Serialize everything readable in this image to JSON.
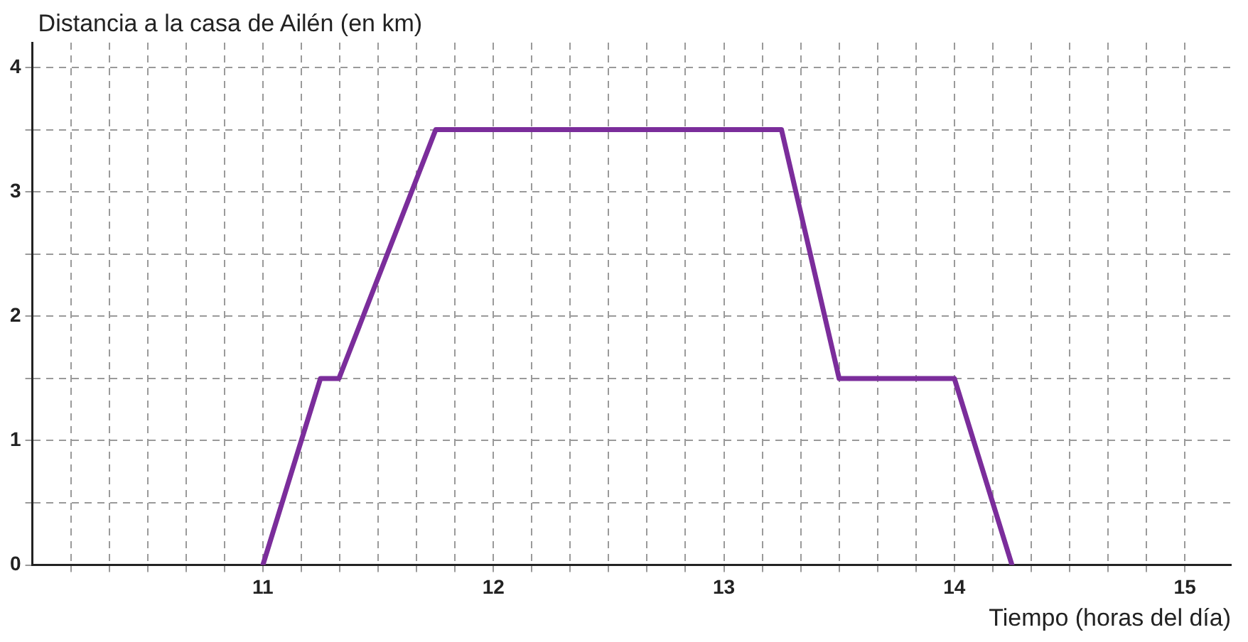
{
  "chart_data": {
    "type": "line",
    "xlabel": "Tiempo (horas del día)",
    "ylabel": "Distancia a la casa de Ailén (en km)",
    "x": [
      11,
      11.25,
      11.33,
      11.75,
      13.25,
      13.5,
      14,
      14.25
    ],
    "series": [
      {
        "color": "#7b2d9b",
        "values": [
          0,
          1.5,
          1.5,
          3.5,
          3.5,
          1.5,
          1.5,
          0
        ]
      }
    ],
    "xlim": [
      10,
      15.2
    ],
    "xticks": [
      {
        "value": 10.1667,
        "label": null
      },
      {
        "value": 10.3333,
        "label": null
      },
      {
        "value": 10.5,
        "label": null
      },
      {
        "value": 10.6667,
        "label": null
      },
      {
        "value": 10.8333,
        "label": null
      },
      11,
      {
        "value": 11.1667,
        "label": null
      },
      {
        "value": 11.3333,
        "label": null
      },
      {
        "value": 11.5,
        "label": null
      },
      {
        "value": 11.6667,
        "label": null
      },
      {
        "value": 11.8333,
        "label": null
      },
      12,
      {
        "value": 12.1667,
        "label": null
      },
      {
        "value": 12.3333,
        "label": null
      },
      {
        "value": 12.5,
        "label": null
      },
      {
        "value": 12.6667,
        "label": null
      },
      {
        "value": 12.8333,
        "label": null
      },
      13,
      {
        "value": 13.1667,
        "label": null
      },
      {
        "value": 13.3333,
        "label": null
      },
      {
        "value": 13.5,
        "label": null
      },
      {
        "value": 13.6667,
        "label": null
      },
      {
        "value": 13.8333,
        "label": null
      },
      14,
      {
        "value": 14.1667,
        "label": null
      },
      {
        "value": 14.3333,
        "label": null
      },
      {
        "value": 14.5,
        "label": null
      },
      {
        "value": 14.6667,
        "label": null
      },
      {
        "value": 14.8333,
        "label": null
      },
      15
    ],
    "ylim": [
      0,
      4.2
    ],
    "yticks": [
      0,
      {
        "value": 0.5,
        "label": null
      },
      1,
      {
        "value": 1.5,
        "label": null
      },
      2,
      {
        "value": 2.5,
        "label": null
      },
      3,
      {
        "value": 3.5,
        "label": null
      },
      4
    ],
    "grid": true,
    "legend": false,
    "marker": "none",
    "line_style": "solid"
  }
}
